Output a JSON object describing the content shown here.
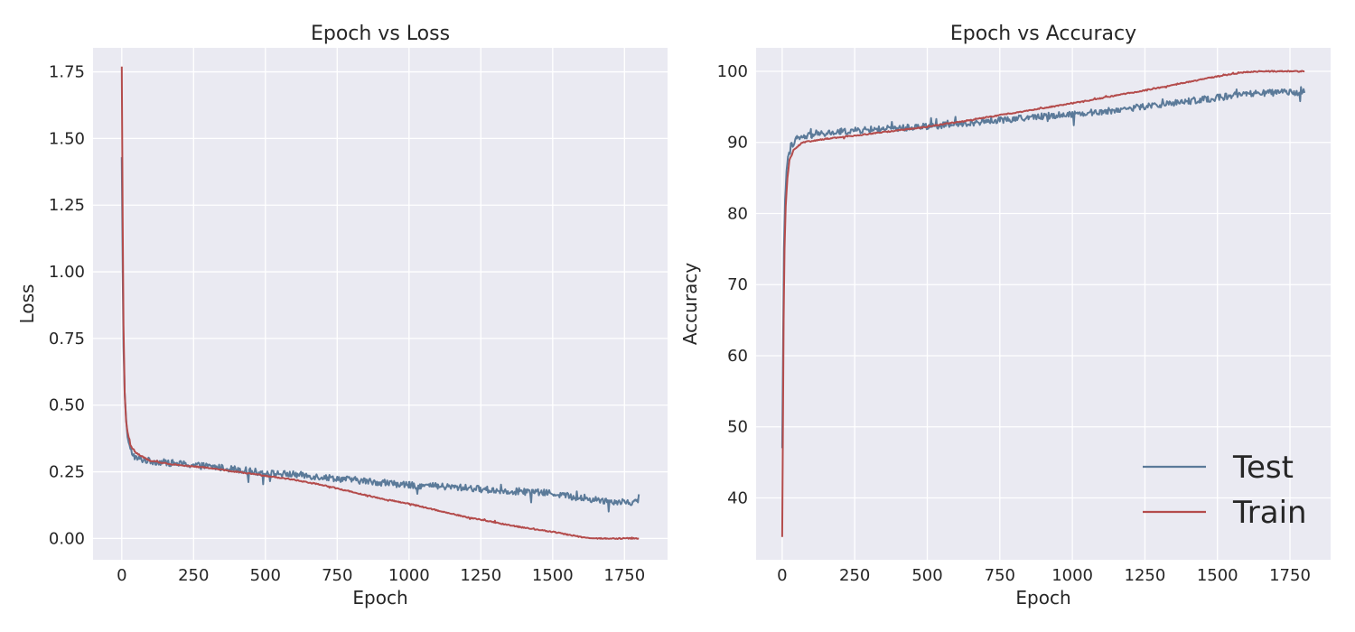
{
  "figure": {
    "colors": {
      "background": "#eaeaf2",
      "grid": "#ffffff",
      "test": "#5b7a99",
      "train": "#b44c4c",
      "text": "#262626"
    }
  },
  "chart_data": [
    {
      "type": "line",
      "title": "Epoch vs Loss",
      "xlabel": "Epoch",
      "ylabel": "Loss",
      "xlim": [
        -100,
        1900
      ],
      "ylim": [
        -0.08,
        1.84
      ],
      "xticks": [
        0,
        250,
        500,
        750,
        1000,
        1250,
        1500,
        1750
      ],
      "xtick_labels": [
        "0",
        "250",
        "500",
        "750",
        "1000",
        "1250",
        "1500",
        "1750"
      ],
      "yticks": [
        0.0,
        0.25,
        0.5,
        0.75,
        1.0,
        1.25,
        1.5,
        1.75
      ],
      "ytick_labels": [
        "0.00",
        "0.25",
        "0.50",
        "0.75",
        "1.00",
        "1.25",
        "1.50",
        "1.75"
      ],
      "grid": true,
      "series": [
        {
          "name": "Test",
          "color": "#5b7a99",
          "noise": 0.025,
          "points": [
            [
              0,
              1.43
            ],
            [
              3,
              1.0
            ],
            [
              6,
              0.72
            ],
            [
              10,
              0.55
            ],
            [
              15,
              0.45
            ],
            [
              20,
              0.38
            ],
            [
              30,
              0.33
            ],
            [
              50,
              0.3
            ],
            [
              100,
              0.29
            ],
            [
              200,
              0.28
            ],
            [
              300,
              0.27
            ],
            [
              400,
              0.26
            ],
            [
              500,
              0.245
            ],
            [
              600,
              0.24
            ],
            [
              700,
              0.23
            ],
            [
              800,
              0.22
            ],
            [
              900,
              0.21
            ],
            [
              1000,
              0.2
            ],
            [
              1100,
              0.195
            ],
            [
              1200,
              0.19
            ],
            [
              1300,
              0.18
            ],
            [
              1400,
              0.175
            ],
            [
              1500,
              0.17
            ],
            [
              1600,
              0.15
            ],
            [
              1700,
              0.14
            ],
            [
              1800,
              0.135
            ]
          ]
        },
        {
          "name": "Train",
          "color": "#b44c4c",
          "noise": 0.004,
          "points": [
            [
              0,
              1.77
            ],
            [
              3,
              1.2
            ],
            [
              6,
              0.8
            ],
            [
              10,
              0.55
            ],
            [
              15,
              0.44
            ],
            [
              20,
              0.4
            ],
            [
              30,
              0.35
            ],
            [
              50,
              0.32
            ],
            [
              100,
              0.29
            ],
            [
              200,
              0.275
            ],
            [
              300,
              0.265
            ],
            [
              400,
              0.25
            ],
            [
              500,
              0.235
            ],
            [
              600,
              0.22
            ],
            [
              700,
              0.2
            ],
            [
              800,
              0.175
            ],
            [
              900,
              0.15
            ],
            [
              1000,
              0.13
            ],
            [
              1100,
              0.105
            ],
            [
              1200,
              0.08
            ],
            [
              1300,
              0.06
            ],
            [
              1400,
              0.04
            ],
            [
              1500,
              0.025
            ],
            [
              1550,
              0.015
            ],
            [
              1600,
              0.005
            ],
            [
              1650,
              0.0
            ],
            [
              1800,
              0.0
            ]
          ]
        }
      ]
    },
    {
      "type": "line",
      "title": "Epoch vs Accuracy",
      "xlabel": "Epoch",
      "ylabel": "Accuracy",
      "xlim": [
        -90,
        1890
      ],
      "ylim": [
        31.3,
        103.3
      ],
      "xticks": [
        0,
        250,
        500,
        750,
        1000,
        1250,
        1500,
        1750
      ],
      "xtick_labels": [
        "0",
        "250",
        "500",
        "750",
        "1000",
        "1250",
        "1500",
        "1750"
      ],
      "yticks": [
        40,
        50,
        60,
        70,
        80,
        90,
        100
      ],
      "ytick_labels": [
        "40",
        "50",
        "60",
        "70",
        "80",
        "90",
        "100"
      ],
      "grid": true,
      "legend": {
        "placement": "lower-right",
        "entries": [
          "Test",
          "Train"
        ]
      },
      "series": [
        {
          "name": "Test",
          "color": "#5b7a99",
          "noise": 0.9,
          "points": [
            [
              0,
              47
            ],
            [
              3,
              62
            ],
            [
              6,
              75
            ],
            [
              10,
              82
            ],
            [
              15,
              86
            ],
            [
              20,
              88
            ],
            [
              30,
              89.5
            ],
            [
              50,
              90.5
            ],
            [
              100,
              91
            ],
            [
              200,
              91.5
            ],
            [
              300,
              91.8
            ],
            [
              400,
              92
            ],
            [
              500,
              92.3
            ],
            [
              600,
              92.5
            ],
            [
              700,
              93
            ],
            [
              800,
              93.3
            ],
            [
              900,
              93.7
            ],
            [
              1000,
              94
            ],
            [
              1100,
              94.3
            ],
            [
              1200,
              94.8
            ],
            [
              1300,
              95.3
            ],
            [
              1400,
              95.8
            ],
            [
              1500,
              96.3
            ],
            [
              1600,
              96.8
            ],
            [
              1700,
              97
            ],
            [
              1800,
              97.1
            ]
          ]
        },
        {
          "name": "Train",
          "color": "#b44c4c",
          "noise": 0.15,
          "points": [
            [
              0,
              34.5
            ],
            [
              2,
              48
            ],
            [
              5,
              65
            ],
            [
              8,
              75
            ],
            [
              12,
              81
            ],
            [
              18,
              85
            ],
            [
              25,
              87.5
            ],
            [
              40,
              89
            ],
            [
              70,
              90
            ],
            [
              150,
              90.5
            ],
            [
              300,
              91.2
            ],
            [
              500,
              92.2
            ],
            [
              700,
              93.5
            ],
            [
              850,
              94.5
            ],
            [
              1000,
              95.5
            ],
            [
              1150,
              96.6
            ],
            [
              1300,
              97.7
            ],
            [
              1400,
              98.5
            ],
            [
              1500,
              99.3
            ],
            [
              1600,
              99.9
            ],
            [
              1650,
              100
            ],
            [
              1800,
              100
            ]
          ]
        }
      ]
    }
  ]
}
